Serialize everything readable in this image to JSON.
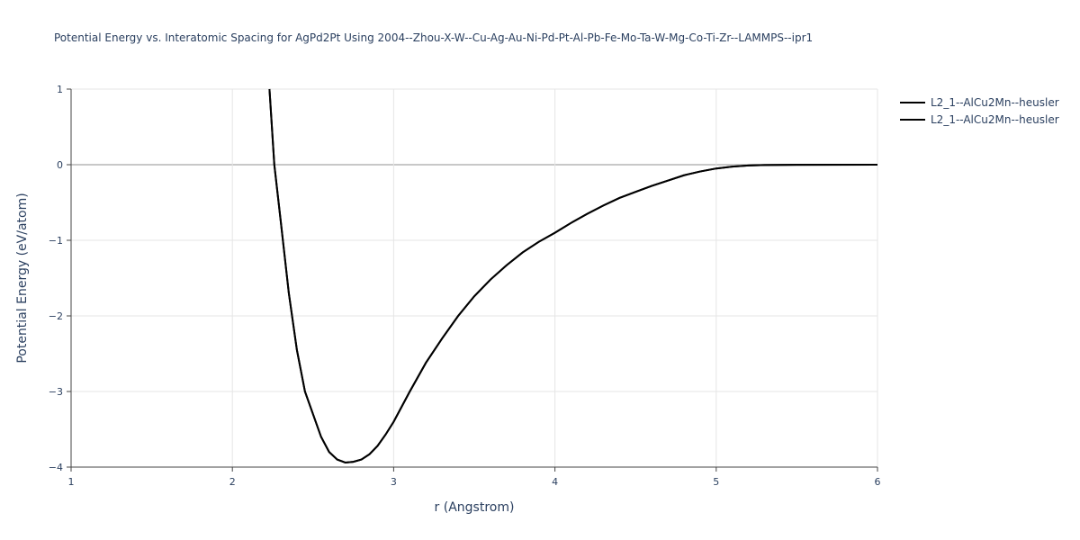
{
  "chart_data": {
    "type": "line",
    "title": "Potential Energy vs. Interatomic Spacing for AgPd2Pt Using 2004--Zhou-X-W--Cu-Ag-Au-Ni-Pd-Pt-Al-Pb-Fe-Mo-Ta-W-Mg-Co-Ti-Zr--LAMMPS--ipr1",
    "xlabel": "r (Angstrom)",
    "ylabel": "Potential Energy (eV/atom)",
    "x": [
      2.23,
      2.26,
      2.3,
      2.35,
      2.4,
      2.45,
      2.5,
      2.55,
      2.6,
      2.65,
      2.7,
      2.75,
      2.8,
      2.85,
      2.9,
      2.95,
      3.0,
      3.1,
      3.2,
      3.3,
      3.4,
      3.5,
      3.6,
      3.7,
      3.8,
      3.9,
      4.0,
      4.1,
      4.2,
      4.3,
      4.4,
      4.5,
      4.6,
      4.7,
      4.8,
      4.9,
      5.0,
      5.1,
      5.2,
      5.3,
      5.5,
      6.0
    ],
    "series": [
      {
        "name": "L2_1--AlCu2Mn--heusler",
        "color": "#000000",
        "values": [
          1.0,
          0.0,
          -0.75,
          -1.7,
          -2.45,
          -3.0,
          -3.3,
          -3.6,
          -3.8,
          -3.9,
          -3.94,
          -3.93,
          -3.9,
          -3.83,
          -3.72,
          -3.57,
          -3.4,
          -3.0,
          -2.62,
          -2.3,
          -2.0,
          -1.74,
          -1.52,
          -1.33,
          -1.16,
          -1.02,
          -0.9,
          -0.77,
          -0.65,
          -0.54,
          -0.44,
          -0.36,
          -0.28,
          -0.21,
          -0.14,
          -0.09,
          -0.05,
          -0.025,
          -0.01,
          -0.004,
          -0.001,
          0
        ]
      },
      {
        "name": "L2_1--AlCu2Mn--heusler",
        "color": "#000000",
        "values": [
          1.0,
          0.0,
          -0.75,
          -1.7,
          -2.45,
          -3.0,
          -3.3,
          -3.6,
          -3.8,
          -3.9,
          -3.94,
          -3.93,
          -3.9,
          -3.83,
          -3.72,
          -3.57,
          -3.4,
          -3.0,
          -2.62,
          -2.3,
          -2.0,
          -1.74,
          -1.52,
          -1.33,
          -1.16,
          -1.02,
          -0.9,
          -0.77,
          -0.65,
          -0.54,
          -0.44,
          -0.36,
          -0.28,
          -0.21,
          -0.14,
          -0.09,
          -0.05,
          -0.025,
          -0.01,
          -0.004,
          -0.001,
          0
        ]
      }
    ],
    "xlim": [
      1,
      6
    ],
    "xticks": [
      1,
      2,
      3,
      4,
      5,
      6
    ],
    "ylim": [
      -4,
      1
    ],
    "yticks": [
      {
        "value": -4,
        "label": "−4"
      },
      {
        "value": -3,
        "label": "−3"
      },
      {
        "value": -2,
        "label": "−2"
      },
      {
        "value": -1,
        "label": "−1"
      },
      0,
      1
    ],
    "grid": true,
    "legend": "top-right"
  }
}
